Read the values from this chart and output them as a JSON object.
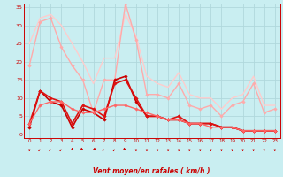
{
  "xlabel": "Vent moyen/en rafales ( km/h )",
  "xlim": [
    -0.5,
    23.5
  ],
  "ylim": [
    -1,
    36
  ],
  "yticks": [
    0,
    5,
    10,
    15,
    20,
    25,
    30,
    35
  ],
  "xticks": [
    0,
    1,
    2,
    3,
    4,
    5,
    6,
    7,
    8,
    9,
    10,
    11,
    12,
    13,
    14,
    15,
    16,
    17,
    18,
    19,
    20,
    21,
    22,
    23
  ],
  "bg_color": "#c9eef1",
  "grid_color": "#b0d8dc",
  "series": [
    {
      "x": [
        0,
        1,
        2,
        3,
        4,
        5,
        6,
        7,
        8,
        9,
        10,
        11,
        12,
        13,
        14,
        15,
        16,
        17,
        18,
        19,
        20,
        21,
        22,
        23
      ],
      "y": [
        19,
        31,
        32,
        24,
        19,
        15,
        6,
        15,
        15,
        36,
        26,
        11,
        11,
        10,
        14,
        8,
        7,
        8,
        5,
        8,
        9,
        14,
        6,
        7
      ],
      "color": "#ffaaaa",
      "lw": 1.0,
      "marker": "D",
      "ms": 1.8
    },
    {
      "x": [
        0,
        1,
        2,
        3,
        4,
        5,
        6,
        7,
        8,
        9,
        10,
        11,
        12,
        13,
        14,
        15,
        16,
        17,
        18,
        19,
        20,
        21,
        22,
        23
      ],
      "y": [
        25,
        32,
        33,
        30,
        25,
        20,
        14,
        21,
        21,
        33,
        27,
        16,
        14,
        13,
        17,
        11,
        10,
        10,
        7,
        10,
        11,
        16,
        8,
        8
      ],
      "color": "#ffcccc",
      "lw": 1.0,
      "marker": null,
      "ms": 0
    },
    {
      "x": [
        0,
        1,
        2,
        3,
        4,
        5,
        6,
        7,
        8,
        9,
        10,
        11,
        12,
        13,
        14,
        15,
        16,
        17,
        18,
        19,
        20,
        21,
        22,
        23
      ],
      "y": [
        2,
        12,
        9,
        8,
        2,
        7,
        6,
        4,
        15,
        16,
        9,
        5,
        5,
        4,
        4,
        3,
        3,
        3,
        2,
        2,
        1,
        1,
        1,
        1
      ],
      "color": "#cc0000",
      "lw": 1.2,
      "marker": "D",
      "ms": 1.8
    },
    {
      "x": [
        0,
        1,
        2,
        3,
        4,
        5,
        6,
        7,
        8,
        9,
        10,
        11,
        12,
        13,
        14,
        15,
        16,
        17,
        18,
        19,
        20,
        21,
        22,
        23
      ],
      "y": [
        3,
        12,
        10,
        9,
        3,
        8,
        7,
        5,
        14,
        15,
        10,
        5,
        5,
        4,
        5,
        3,
        3,
        3,
        2,
        2,
        1,
        1,
        1,
        1
      ],
      "color": "#dd1111",
      "lw": 1.2,
      "marker": "D",
      "ms": 1.8
    },
    {
      "x": [
        0,
        1,
        2,
        3,
        4,
        5,
        6,
        7,
        8,
        9,
        10,
        11,
        12,
        13,
        14,
        15,
        16,
        17,
        18,
        19,
        20,
        21,
        22,
        23
      ],
      "y": [
        3,
        8,
        9,
        9,
        7,
        6,
        6,
        7,
        8,
        8,
        7,
        6,
        5,
        4,
        4,
        3,
        3,
        2,
        2,
        2,
        1,
        1,
        1,
        1
      ],
      "color": "#ff6666",
      "lw": 1.0,
      "marker": "D",
      "ms": 1.8
    }
  ],
  "wind_arrows": [
    270,
    45,
    45,
    45,
    90,
    315,
    225,
    45,
    45,
    315,
    270,
    270,
    270,
    270,
    270,
    270,
    270,
    270,
    270,
    270,
    270,
    270,
    270,
    270
  ]
}
